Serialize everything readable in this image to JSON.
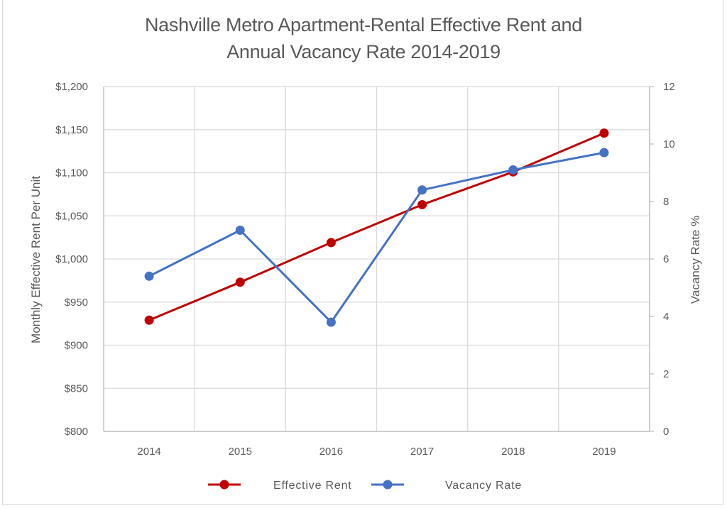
{
  "chart_data": {
    "type": "line",
    "title_line1": "Nashville Metro Apartment-Rental Effective Rent and",
    "title_line2": "Annual Vacancy Rate 2014-2019",
    "categories": [
      "2014",
      "2015",
      "2016",
      "2017",
      "2018",
      "2019"
    ],
    "y_left": {
      "label": "Monthly Effective Rent Per Unit",
      "range": [
        800,
        1200
      ],
      "ticks": [
        800,
        850,
        900,
        950,
        1000,
        1050,
        1100,
        1150,
        1200
      ],
      "tick_labels": [
        "$800",
        "$850",
        "$900",
        "$950",
        "$1,000",
        "$1,050",
        "$1,100",
        "$1,150",
        "$1,200"
      ]
    },
    "y_right": {
      "label": "Vacancy Rate %",
      "range": [
        0,
        12
      ],
      "ticks": [
        0,
        2,
        4,
        6,
        8,
        10,
        12
      ],
      "tick_labels": [
        "0",
        "2",
        "4",
        "6",
        "8",
        "10",
        "12"
      ]
    },
    "series": [
      {
        "name": "Effective Rent",
        "axis": "left",
        "color": "#c00000",
        "values": [
          929,
          973,
          1019,
          1063,
          1101,
          1146
        ]
      },
      {
        "name": "Vacancy Rate",
        "axis": "right",
        "color": "#4472c4",
        "values": [
          5.4,
          7.0,
          3.8,
          8.4,
          9.1,
          9.7
        ]
      }
    ],
    "grid": true,
    "legend_position": "bottom"
  }
}
